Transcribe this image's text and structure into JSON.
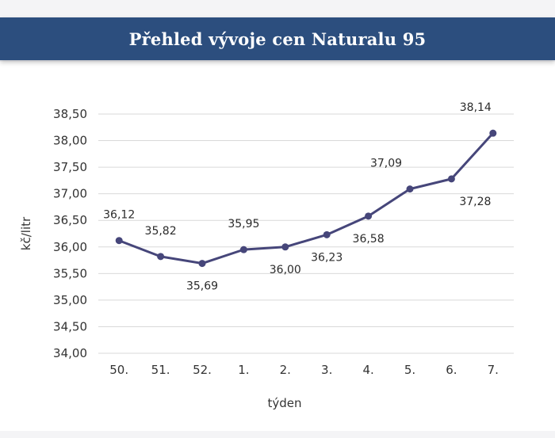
{
  "header": {
    "title": "Přehled vývoje cen Naturalu 95"
  },
  "colors": {
    "header_bg": "#2c4e7e",
    "series": "#46467a",
    "grid": "#d9d9d9"
  },
  "chart_data": {
    "type": "line",
    "categories": [
      "50.",
      "51.",
      "52.",
      "1.",
      "2.",
      "3.",
      "4.",
      "5.",
      "6.",
      "7."
    ],
    "values": [
      36.12,
      35.82,
      35.69,
      35.95,
      36.0,
      36.23,
      36.58,
      37.09,
      37.28,
      38.14
    ],
    "value_labels": [
      "36,12",
      "35,82",
      "35,69",
      "35,95",
      "36,00",
      "36,23",
      "36,58",
      "37,09",
      "37,28",
      "38,14"
    ],
    "xlabel": "týden",
    "ylabel": "kč/litr",
    "ylim": [
      34.0,
      38.5
    ],
    "yticks": [
      "34,00",
      "34,50",
      "35,00",
      "35,50",
      "36,00",
      "36,50",
      "37,00",
      "37,50",
      "38,00",
      "38,50"
    ],
    "ytick_values": [
      34.0,
      34.5,
      35.0,
      35.5,
      36.0,
      36.5,
      37.0,
      37.5,
      38.0,
      38.5
    ],
    "grid": true,
    "legend": "none",
    "markers": true
  }
}
